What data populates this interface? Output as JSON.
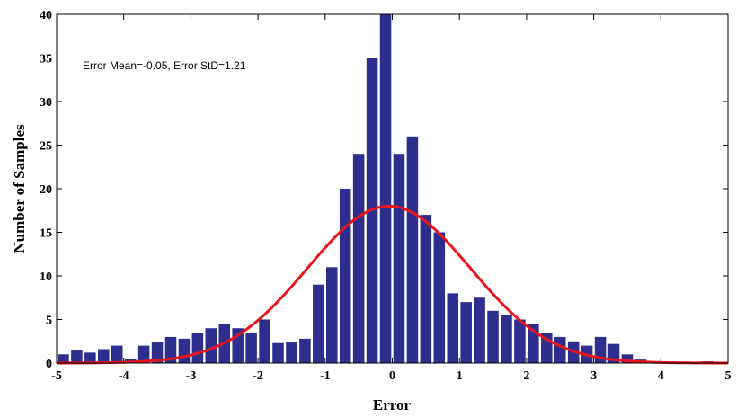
{
  "chart_data": {
    "type": "bar",
    "xlabel": "Error",
    "ylabel": "Number of Samples",
    "annotation": "Error Mean=-0.05, Error StD=1.21",
    "xlim": [
      -5,
      5
    ],
    "ylim": [
      0,
      40
    ],
    "xticks": [
      -5,
      -4,
      -3,
      -2,
      -1,
      0,
      1,
      2,
      3,
      4,
      5
    ],
    "yticks": [
      0,
      5,
      10,
      15,
      20,
      25,
      30,
      35,
      40
    ],
    "bin_width": 0.2,
    "grid": false,
    "bar_color": "#2e2e8e",
    "curve_color": "#e8141c",
    "bins": {
      "x": [
        -4.9,
        -4.7,
        -4.5,
        -4.3,
        -4.1,
        -3.9,
        -3.7,
        -3.5,
        -3.3,
        -3.1,
        -2.9,
        -2.7,
        -2.5,
        -2.3,
        -2.1,
        -1.9,
        -1.7,
        -1.5,
        -1.3,
        -1.1,
        -0.9,
        -0.7,
        -0.5,
        -0.3,
        -0.1,
        0.1,
        0.3,
        0.5,
        0.7,
        0.9,
        1.1,
        1.3,
        1.5,
        1.7,
        1.9,
        2.1,
        2.3,
        2.5,
        2.7,
        2.9,
        3.1,
        3.3,
        3.5,
        3.7,
        3.9,
        4.1,
        4.3,
        4.5,
        4.7,
        4.9
      ],
      "values": [
        1.0,
        1.5,
        1.2,
        1.6,
        2.0,
        0.5,
        2.0,
        2.4,
        3.0,
        2.8,
        3.5,
        4.0,
        4.5,
        4.0,
        3.5,
        5.0,
        2.3,
        2.4,
        2.8,
        9.0,
        11.0,
        20.0,
        24.0,
        35.0,
        40.0,
        24.0,
        26.0,
        17.0,
        15.0,
        8.0,
        7.0,
        7.5,
        6.0,
        5.5,
        5.0,
        4.5,
        3.5,
        3.0,
        2.5,
        2.0,
        3.0,
        2.2,
        1.0,
        0.4,
        0.2,
        0.0,
        0.0,
        0.0,
        0.2,
        0.0
      ]
    },
    "fit_curve": {
      "type": "normal",
      "mean": -0.05,
      "std": 1.21,
      "peak": 18
    }
  }
}
